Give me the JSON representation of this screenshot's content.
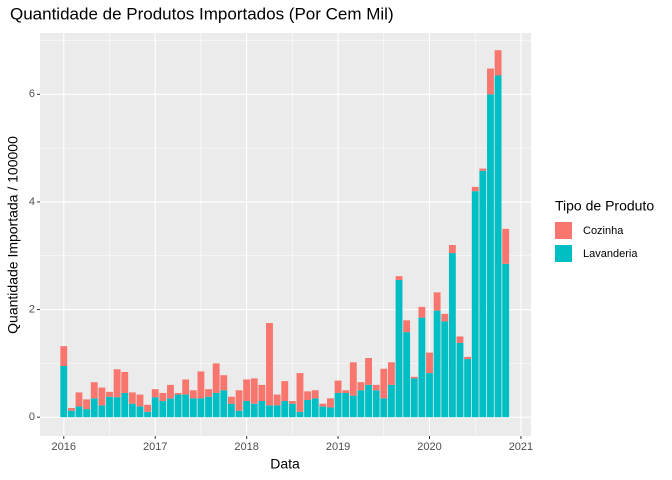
{
  "chart_data": {
    "type": "stacked_bar",
    "title": "Quantidade de Produtos Importados (Por Cem Mil)",
    "x_label": "Data",
    "y_label": "Quantidade Importada / 100000",
    "legend_title": "Tipo de Produto",
    "legend_position": "right",
    "grid": true,
    "x": [
      2016,
      2016.0833,
      2016.1667,
      2016.25,
      2016.3333,
      2016.4167,
      2016.5,
      2016.5833,
      2016.6667,
      2016.75,
      2016.8333,
      2016.9167,
      2017,
      2017.0833,
      2017.1667,
      2017.25,
      2017.3333,
      2017.4167,
      2017.5,
      2017.5833,
      2017.6667,
      2017.75,
      2017.8333,
      2017.9167,
      2018,
      2018.0833,
      2018.1667,
      2018.25,
      2018.3333,
      2018.4167,
      2018.5,
      2018.5833,
      2018.6667,
      2018.75,
      2018.8333,
      2018.9167,
      2019,
      2019.0833,
      2019.1667,
      2019.25,
      2019.3333,
      2019.4167,
      2019.5,
      2019.5833,
      2019.6667,
      2019.75,
      2019.8333,
      2019.9167,
      2020,
      2020.0833,
      2020.1667,
      2020.25,
      2020.3333,
      2020.4167,
      2020.5,
      2020.5833,
      2020.6667,
      2020.75,
      2020.8333
    ],
    "series": [
      {
        "name": "Lavanderia",
        "color": "#00BFC4",
        "values": [
          0.95,
          0.12,
          0.2,
          0.15,
          0.35,
          0.22,
          0.38,
          0.37,
          0.45,
          0.25,
          0.2,
          0.1,
          0.37,
          0.3,
          0.35,
          0.42,
          0.42,
          0.35,
          0.35,
          0.38,
          0.45,
          0.5,
          0.25,
          0.12,
          0.3,
          0.25,
          0.3,
          0.22,
          0.22,
          0.3,
          0.25,
          0.1,
          0.32,
          0.35,
          0.2,
          0.18,
          0.45,
          0.45,
          0.4,
          0.5,
          0.6,
          0.5,
          0.35,
          0.6,
          2.55,
          1.58,
          0.72,
          1.85,
          0.82,
          1.98,
          1.78,
          3.05,
          1.38,
          1.08,
          4.2,
          4.58,
          6.0,
          6.35,
          2.85
        ]
      },
      {
        "name": "Cozinha",
        "color": "#F8766D",
        "values": [
          0.37,
          0.05,
          0.26,
          0.18,
          0.3,
          0.33,
          0.09,
          0.52,
          0.39,
          0.21,
          0.22,
          0.13,
          0.15,
          0.15,
          0.25,
          0.03,
          0.28,
          0.15,
          0.5,
          0.14,
          0.55,
          0.28,
          0.13,
          0.38,
          0.4,
          0.47,
          0.3,
          1.53,
          0.2,
          0.37,
          0.05,
          0.72,
          0.16,
          0.15,
          0.05,
          0.17,
          0.23,
          0.05,
          0.62,
          0.15,
          0.5,
          0.1,
          0.55,
          0.42,
          0.07,
          0.22,
          0.03,
          0.2,
          0.38,
          0.34,
          0.14,
          0.15,
          0.12,
          0.04,
          0.08,
          0.04,
          0.48,
          0.47,
          0.65
        ]
      }
    ],
    "xlim": [
      2015.74,
      2021.11
    ],
    "xticks": [
      2016,
      2017,
      2018,
      2019,
      2020,
      2021
    ],
    "ylim": [
      -0.35,
      7.14
    ],
    "yticks": [
      0,
      2,
      4,
      6
    ]
  }
}
